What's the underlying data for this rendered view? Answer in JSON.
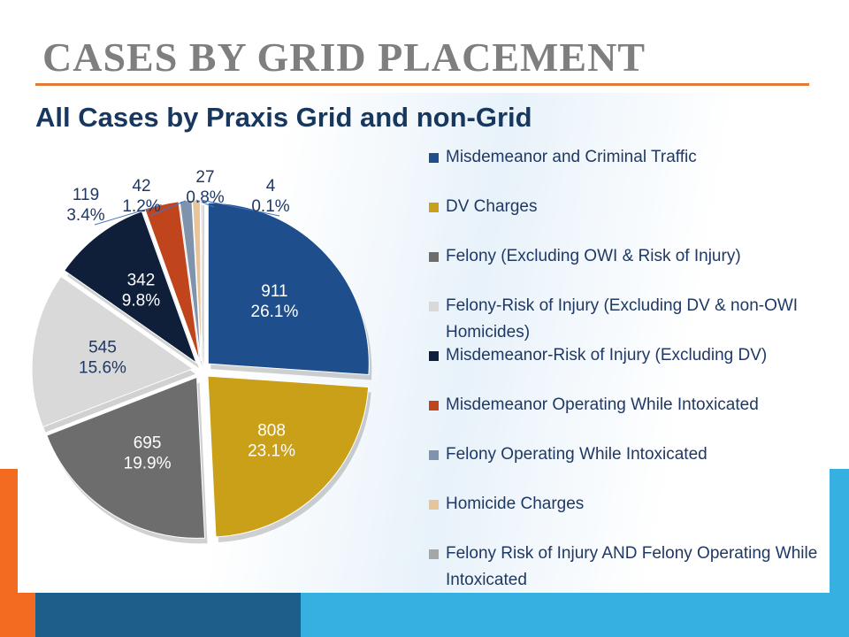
{
  "slide_title": "CASES BY GRID PLACEMENT",
  "chart_data": {
    "type": "pie",
    "title": "All Cases by Praxis Grid and non-Grid",
    "categories": [
      "Misdemeanor and Criminal Traffic",
      "DV Charges",
      "Felony (Excluding OWI & Risk of Injury)",
      "Felony-Risk of Injury (Excluding DV & non-OWI Homicides)",
      "Misdemeanor-Risk of Injury (Excluding DV)",
      "Misdemeanor Operating While Intoxicated",
      "Felony Operating While Intoxicated",
      "Homicide Charges",
      "Felony Risk of Injury AND Felony Operating While Intoxicated"
    ],
    "values": [
      911,
      808,
      695,
      545,
      342,
      119,
      42,
      27,
      4
    ],
    "percent_labels": [
      "26.1%",
      "23.1%",
      "19.9%",
      "15.6%",
      "9.8%",
      "3.4%",
      "1.2%",
      "0.8%",
      "0.1%"
    ],
    "colors": [
      "#1f4e8c",
      "#c9a017",
      "#6d6d6d",
      "#d9d9d9",
      "#0f1f3a",
      "#c0441c",
      "#7f93ad",
      "#e8c49a",
      "#a6a6a6"
    ],
    "legend": "right"
  }
}
